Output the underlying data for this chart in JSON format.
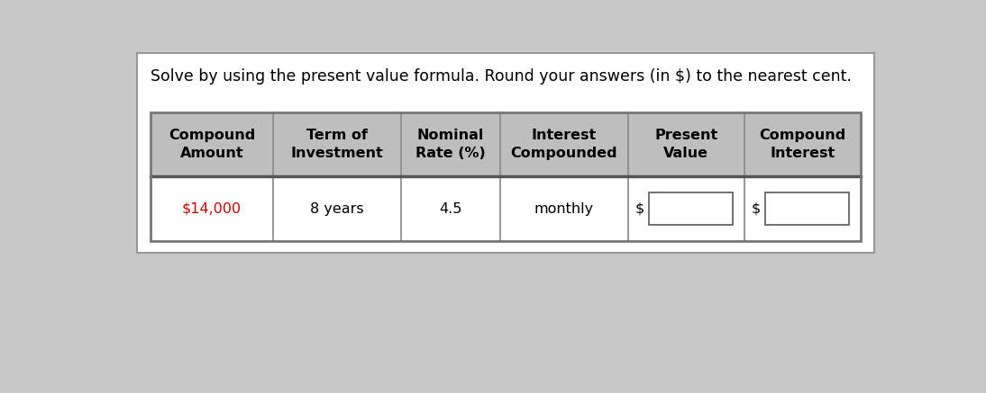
{
  "title": "Solve by using the present value formula. Round your answers (in $) to the nearest cent.",
  "title_fontsize": 12.5,
  "title_fontweight": "normal",
  "background_color": "#ffffff",
  "outer_bg_color": "#c8c8c8",
  "header_bg_color": "#bebebe",
  "header_text_color": "#000000",
  "header_fontsize": 11.5,
  "header_fontweight": "bold",
  "cell_bg_color": "#ffffff",
  "cell_fontsize": 11.5,
  "cell_fontweight": "normal",
  "red_color": "#cc0000",
  "columns": [
    "Compound\nAmount",
    "Term of\nInvestment",
    "Nominal\nRate (%)",
    "Interest\nCompounded",
    "Present\nValue",
    "Compound\nInterest"
  ],
  "row_data": [
    "$14,000",
    "8 years",
    "4.5",
    "monthly",
    "",
    ""
  ],
  "input_cols": [
    4,
    5
  ],
  "col_proportions": [
    1.05,
    1.1,
    0.85,
    1.1,
    1.0,
    1.0
  ]
}
